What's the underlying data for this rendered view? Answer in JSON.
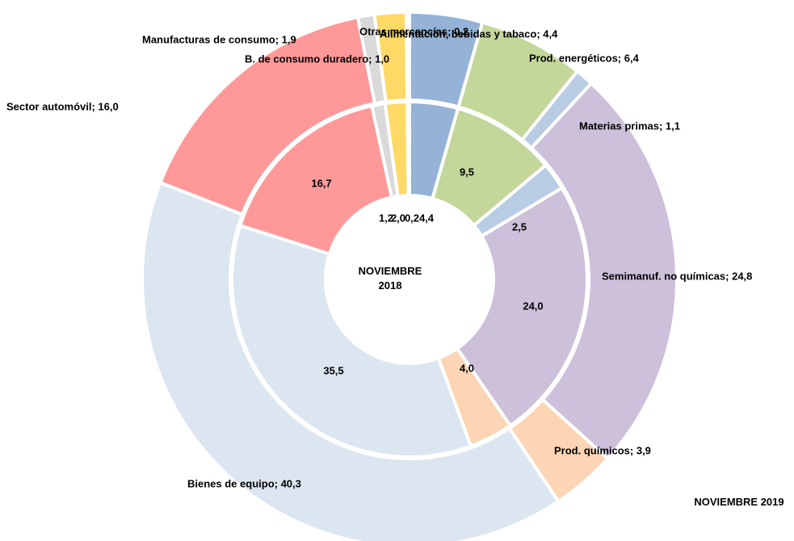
{
  "chart_data": {
    "type": "donut",
    "colors": [
      "#95b3d7",
      "#c4d79b",
      "#b8cce4",
      "#ccc0da",
      "#fcd5b4",
      "#dce6f1",
      "#ff9999",
      "#d9d9d9",
      "#ffd966",
      "#bfbfbf"
    ],
    "series": [
      {
        "name": "NOVIEMBRE 2018",
        "ring": "inner",
        "values": [
          4.4,
          9.5,
          2.5,
          24.0,
          4.0,
          35.5,
          16.7,
          1.2,
          2.0,
          0.2
        ],
        "value_labels": [
          "4,4",
          "9,5",
          "2,5",
          "24,0",
          "4,0",
          "35,5",
          "16,7",
          "1,2",
          "2,0",
          "0,2"
        ]
      },
      {
        "name": "NOVIEMBRE 2019",
        "ring": "outer",
        "values": [
          4.4,
          6.4,
          1.1,
          24.8,
          3.9,
          40.3,
          16.0,
          1.0,
          1.9,
          0.2
        ],
        "value_labels": [
          "Alimentación, bebidas y tabaco; 4,4",
          "Prod. energéticos; 6,4",
          "Materias primas; 1,1",
          "Semimanuf. no químicas; 24,8",
          "Prod. químicos; 3,9",
          "Bienes de equipo; 40,3",
          "Sector automóvil; 16,0",
          "B. de consumo duradero; 1,0",
          "Manufacturas de consumo; 1,9",
          "Otras mercancías; 0,2"
        ]
      }
    ]
  }
}
